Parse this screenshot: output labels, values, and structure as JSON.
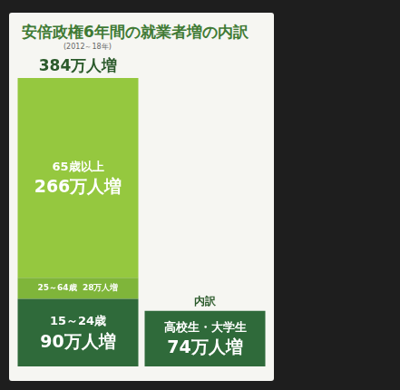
{
  "chart_data": {
    "type": "bar",
    "title": "安倍政権6年間の就業者増の内訳",
    "subtitle": "(2012～18年)",
    "categories": [
      null,
      null
    ],
    "series": [
      {
        "name": "15～24歳",
        "color": "#2f6a3a",
        "values": [
          90,
          null
        ],
        "value_labels": [
          "90万人増",
          null
        ]
      },
      {
        "name": "高校生・大学生",
        "color": "#2f6a3a",
        "values": [
          null,
          74
        ],
        "value_labels": [
          null,
          "74万人増"
        ]
      },
      {
        "name": "25～64歳",
        "color": "#7fb53a",
        "values": [
          28,
          null
        ],
        "value_labels": [
          "28万人増",
          null
        ]
      },
      {
        "name": "65歳以上",
        "color": "#95c83f",
        "values": [
          266,
          null
        ],
        "value_labels": [
          "266万人増",
          null
        ]
      }
    ],
    "annotations": [
      {
        "label": "384万人増",
        "value": 384,
        "category": 0
      },
      {
        "label": "内訳",
        "value": 74,
        "category": 1
      }
    ],
    "stacked": true,
    "data_labels": true,
    "tick_labels": false,
    "grid": false,
    "ylim": [
      0,
      384
    ]
  }
}
